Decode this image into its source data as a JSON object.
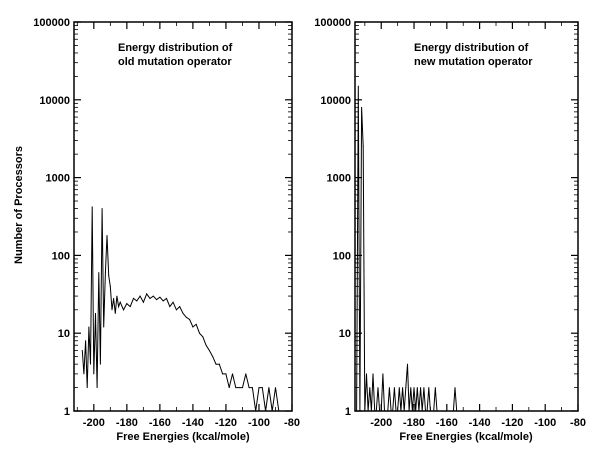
{
  "chart_data": [
    {
      "type": "line",
      "annotation": [
        "Energy distribution of",
        "old mutation operator"
      ],
      "xlabel": "Free Energies (kcal/mole)",
      "ylabel": "Number of Processors",
      "xlim": [
        -212,
        -80
      ],
      "ylim": [
        1,
        100000
      ],
      "yscale": "log",
      "x_ticks": [
        "-200",
        "-180",
        "-160",
        "-140",
        "-120",
        "-100",
        "-80"
      ],
      "y_ticks": [
        "1",
        "10",
        "100",
        "1000",
        "10000",
        "100000"
      ],
      "series": [
        {
          "x": [
            -207,
            -206,
            -205,
            -204,
            -203,
            -202,
            -201,
            -200,
            -199,
            -198,
            -197,
            -196,
            -195,
            -194,
            -193,
            -192,
            -191,
            -190,
            -189,
            -188,
            -187,
            -186,
            -185,
            -184,
            -182,
            -180,
            -178,
            -176,
            -174,
            -172,
            -170,
            -168,
            -166,
            -164,
            -162,
            -160,
            -158,
            -156,
            -154,
            -152,
            -150,
            -148,
            -146,
            -144,
            -142,
            -140,
            -138,
            -136,
            -134,
            -132,
            -130,
            -128,
            -126,
            -124,
            -122,
            -120,
            -118,
            -116,
            -114,
            -112,
            -110,
            -108,
            -106,
            -104,
            -102,
            -100,
            -98,
            -96,
            -94,
            -92,
            -90,
            -88
          ],
          "y": [
            6,
            3,
            8,
            2,
            12,
            4,
            420,
            3,
            18,
            2,
            60,
            4,
            400,
            12,
            60,
            180,
            55,
            40,
            20,
            28,
            18,
            30,
            22,
            25,
            20,
            24,
            22,
            28,
            26,
            30,
            25,
            32,
            28,
            30,
            27,
            29,
            26,
            28,
            22,
            25,
            20,
            22,
            18,
            16,
            15,
            12,
            13,
            10,
            9,
            7,
            6,
            5,
            4,
            4,
            3,
            3,
            2,
            3,
            2,
            2,
            2,
            3,
            2,
            2,
            1,
            2,
            2,
            1,
            2,
            1,
            2,
            1
          ]
        }
      ]
    },
    {
      "type": "line",
      "annotation": [
        "Energy distribution of",
        "new mutation operator"
      ],
      "xlabel": "Free Energies (kcal/mole)",
      "xlim": [
        -216,
        -80
      ],
      "ylim": [
        1,
        100000
      ],
      "yscale": "log",
      "x_ticks": [
        "-200",
        "-180",
        "-160",
        "-140",
        "-120",
        "-100",
        "-80"
      ],
      "y_ticks": [
        "1",
        "10",
        "100",
        "1000",
        "10000",
        "100000"
      ],
      "series": [
        {
          "x": [
            -215,
            -214,
            -213,
            -212,
            -211,
            -210,
            -209,
            -208,
            -207,
            -206,
            -205,
            -204,
            -203,
            -202,
            -201,
            -200,
            -199,
            -198,
            -197,
            -196,
            -195,
            -194,
            -193,
            -192,
            -191,
            -190,
            -189,
            -188,
            -187,
            -186,
            -185,
            -184,
            -183,
            -182,
            -181,
            -180,
            -179,
            -178,
            -177,
            -176,
            -175,
            -174,
            -173,
            -172,
            -171,
            -170,
            -169,
            -168,
            -167,
            -166,
            -165,
            -164,
            -163,
            -162,
            -161,
            -160,
            -159,
            -158,
            -157,
            -156,
            -155,
            -154,
            -153,
            -152,
            -151,
            -150
          ],
          "y": [
            1,
            15000,
            1,
            8000,
            2500,
            1,
            3,
            1,
            2,
            1,
            3,
            1,
            1,
            2,
            1,
            1,
            3,
            1,
            1,
            1,
            2,
            1,
            1,
            2,
            1,
            1,
            2,
            1,
            2,
            1,
            2,
            4,
            1,
            2,
            1,
            2,
            1,
            2,
            1,
            2,
            1,
            2,
            1,
            1,
            2,
            1,
            1,
            1,
            2,
            1,
            1,
            1,
            1,
            1,
            1,
            1,
            1,
            1,
            1,
            1,
            2,
            1,
            1,
            1,
            1,
            1
          ]
        }
      ]
    }
  ]
}
